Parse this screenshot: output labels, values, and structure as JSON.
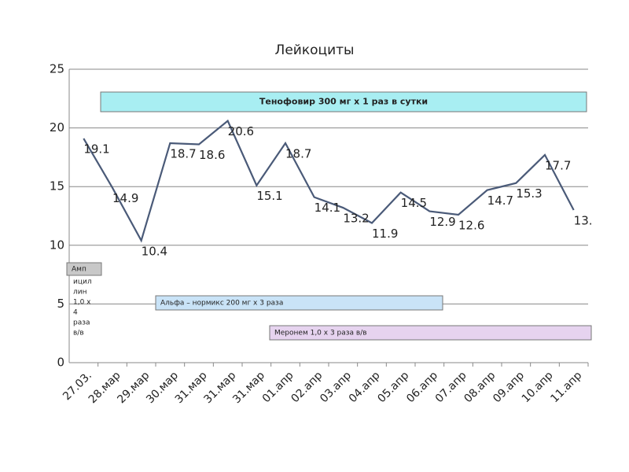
{
  "chart_data": {
    "type": "line",
    "title": "Лейкоциты",
    "categories": [
      "27.03.",
      "28.мар",
      "29.мар",
      "30.мар",
      "31.мар",
      "31.мар",
      "31.мар",
      "01.апр",
      "02.апр",
      "03.апр",
      "04.апр",
      "05.апр",
      "06.апр",
      "07.апр",
      "08.апр",
      "09.апр",
      "10.апр",
      "11.апр"
    ],
    "series": [
      {
        "name": "Лейкоциты",
        "color": "#4a5a78",
        "values": [
          19.1,
          14.9,
          10.4,
          18.7,
          18.6,
          20.6,
          15.1,
          18.7,
          14.1,
          13.2,
          11.9,
          14.5,
          12.9,
          12.6,
          14.7,
          15.3,
          17.7,
          13
        ],
        "value_labels": [
          "19.1",
          "14.9",
          "10.4",
          "18.7",
          "18.6",
          "20.6",
          "15.1",
          "18.7",
          "14.1",
          "13.2",
          "11.9",
          "14.5",
          "12.9",
          "12.6",
          "14.7",
          "15.3",
          "17.7",
          "13."
        ]
      }
    ],
    "ylim": [
      0,
      25
    ],
    "yticks": [
      0,
      5,
      10,
      15,
      20,
      25
    ],
    "grid": true,
    "annotations": [
      {
        "text": "Тенофовир 300 мг х 1 раз в сутки",
        "color": "#a8eef2"
      },
      {
        "text": "Амп",
        "lines": [
          "ицил",
          "лин",
          "1,0 х",
          "4",
          "раза",
          "в/в"
        ],
        "color": "#c8c8c8"
      },
      {
        "text": "Альфа – нормикс  200 мг х 3 раза",
        "color": "#c9e3f7"
      },
      {
        "text": "Меронем 1,0 х 3 раза в/в",
        "color": "#e6d3ef"
      }
    ]
  }
}
